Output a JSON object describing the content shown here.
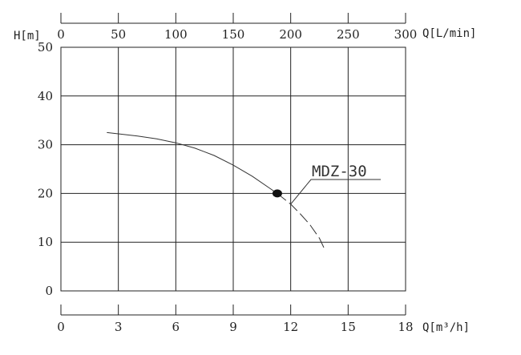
{
  "chart_data": {
    "type": "line",
    "title": "",
    "grid": true,
    "axes": {
      "y": {
        "label": "H[m]",
        "ylim": [
          0,
          50
        ],
        "ticks": [
          0,
          10,
          20,
          30,
          40,
          50
        ]
      },
      "x_bottom": {
        "label": "Q[m³/h]",
        "xlim": [
          0,
          18
        ],
        "ticks": [
          0,
          3,
          6,
          9,
          12,
          15,
          18
        ]
      },
      "x_top": {
        "label": "Q[L/min]",
        "xlim": [
          0,
          300
        ],
        "ticks": [
          0,
          50,
          100,
          150,
          200,
          250,
          300
        ]
      }
    },
    "series": [
      {
        "name": "MDZ-30",
        "x": [
          2.4,
          4.0,
          5.0,
          6.0,
          7.0,
          8.0,
          9.0,
          10.0,
          11.0,
          11.3
        ],
        "y": [
          32.5,
          31.8,
          31.2,
          30.4,
          29.3,
          27.8,
          25.8,
          23.5,
          20.8,
          20.0
        ],
        "extension": {
          "x": [
            11.3,
            12.0,
            12.5,
            13.0,
            13.5,
            13.8
          ],
          "y": [
            20.0,
            17.8,
            15.8,
            13.6,
            10.8,
            8.3
          ],
          "style": "dashed"
        }
      }
    ],
    "operating_point": {
      "x": 11.3,
      "y": 20.0
    },
    "annotations": [
      {
        "text": "MDZ-30",
        "x": 12.0,
        "y": 17.8
      }
    ]
  }
}
